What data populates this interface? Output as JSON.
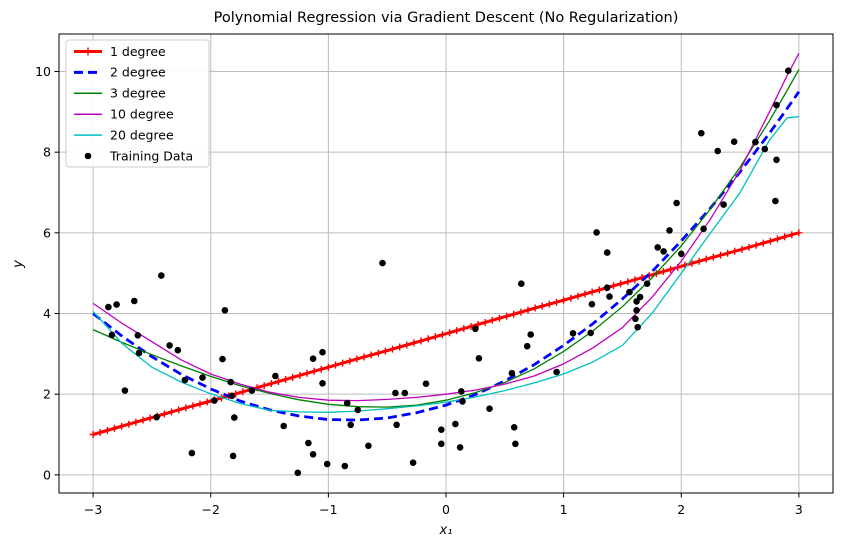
{
  "figure": {
    "title": "Polynomial Regression via Gradient Descent (No Regularization)",
    "xlabel": "x₁",
    "ylabel": "y",
    "background": "#ffffff"
  },
  "legend": {
    "position": "upper-left",
    "items": [
      {
        "label": "1 degree",
        "color": "#ff0000",
        "style": "line-plus"
      },
      {
        "label": "2 degree",
        "color": "#0000ff",
        "style": "dashed-line"
      },
      {
        "label": "3 degree",
        "color": "#008000",
        "style": "line"
      },
      {
        "label": "10 degree",
        "color": "#bf00bf",
        "style": "line"
      },
      {
        "label": "20 degree",
        "color": "#00bfbf",
        "style": "line"
      },
      {
        "label": "Training Data",
        "color": "#000000",
        "style": "dot"
      }
    ]
  },
  "chart_data": {
    "type": "line",
    "title": "Polynomial Regression via Gradient Descent (No Regularization)",
    "xlabel": "x₁",
    "ylabel": "y",
    "grid": true,
    "legend_position": "upper left",
    "xlim": [
      -3.29,
      3.29
    ],
    "ylim": [
      -0.45,
      10.93
    ],
    "xticks": [
      -3,
      -2,
      -1,
      0,
      1,
      2,
      3
    ],
    "yticks": [
      0,
      2,
      4,
      6,
      8,
      10
    ],
    "xtick_labels": [
      "−3",
      "−2",
      "−1",
      "0",
      "1",
      "2",
      "3"
    ],
    "ytick_labels": [
      "0",
      "2",
      "4",
      "6",
      "8",
      "10"
    ],
    "x": [
      -3,
      -2.75,
      -2.5,
      -2.25,
      -2,
      -1.75,
      -1.5,
      -1.25,
      -1,
      -0.75,
      -0.5,
      -0.25,
      0,
      0.25,
      0.5,
      0.75,
      1,
      1.25,
      1.5,
      1.75,
      2,
      2.25,
      2.5,
      2.75,
      2.9,
      3
    ],
    "series": [
      {
        "name": "1 degree",
        "color": "#ff0000",
        "style": "solid",
        "marker": "plus",
        "width": 3,
        "values": [
          1,
          1.21,
          1.42,
          1.63,
          1.83,
          2.04,
          2.25,
          2.46,
          2.67,
          2.88,
          3.08,
          3.29,
          3.5,
          3.71,
          3.92,
          4.13,
          4.33,
          4.54,
          4.75,
          4.96,
          5.17,
          5.38,
          5.58,
          5.79,
          5.92,
          6
        ]
      },
      {
        "name": "2 degree",
        "color": "#0000ff",
        "style": "dashed",
        "marker": "none",
        "width": 2.8,
        "values": [
          4,
          3.43,
          2.93,
          2.49,
          2.13,
          1.83,
          1.61,
          1.46,
          1.37,
          1.36,
          1.41,
          1.54,
          1.73,
          1.99,
          2.33,
          2.73,
          3.21,
          3.75,
          4.36,
          5.04,
          5.8,
          6.62,
          7.51,
          8.47,
          9.08,
          9.5
        ]
      },
      {
        "name": "3 degree",
        "color": "#008000",
        "style": "solid",
        "marker": "none",
        "width": 1.3,
        "values": [
          3.6,
          3.28,
          2.98,
          2.7,
          2.44,
          2.21,
          2.02,
          1.86,
          1.75,
          1.69,
          1.68,
          1.73,
          1.85,
          2.04,
          2.29,
          2.63,
          3.06,
          3.57,
          4.17,
          4.88,
          5.68,
          6.6,
          7.63,
          8.78,
          9.53,
          10.05
        ]
      },
      {
        "name": "10 degree",
        "color": "#bf00bf",
        "style": "solid",
        "marker": "none",
        "width": 1.3,
        "values": [
          4.25,
          3.75,
          3.3,
          2.85,
          2.5,
          2.25,
          2.05,
          1.92,
          1.85,
          1.84,
          1.87,
          1.92,
          2,
          2.1,
          2.25,
          2.45,
          2.75,
          3.15,
          3.65,
          4.4,
          5.3,
          6.35,
          7.55,
          9,
          9.9,
          10.45
        ]
      },
      {
        "name": "20 degree",
        "color": "#00bfbf",
        "style": "solid",
        "marker": "none",
        "width": 1.3,
        "values": [
          4.05,
          3.25,
          2.67,
          2.3,
          2.01,
          1.77,
          1.6,
          1.56,
          1.55,
          1.58,
          1.64,
          1.71,
          1.8,
          1.93,
          2.09,
          2.28,
          2.5,
          2.8,
          3.21,
          4,
          5,
          6,
          7,
          8.3,
          8.85,
          8.88
        ]
      }
    ],
    "scatter": {
      "name": "Training Data",
      "color": "#000000",
      "marker": "dot",
      "points": [
        [
          2.91,
          10.02
        ],
        [
          2.81,
          9.17
        ],
        [
          2.17,
          8.47
        ],
        [
          2.45,
          8.26
        ],
        [
          2.63,
          8.25
        ],
        [
          2.31,
          8.03
        ],
        [
          2.71,
          8.08
        ],
        [
          2.81,
          7.81
        ],
        [
          2.8,
          6.79
        ],
        [
          1.96,
          6.74
        ],
        [
          2.36,
          6.7
        ],
        [
          1.28,
          6.01
        ],
        [
          1.37,
          5.51
        ],
        [
          1.9,
          6.06
        ],
        [
          1.8,
          5.64
        ],
        [
          1.85,
          5.54
        ],
        [
          2.0,
          5.48
        ],
        [
          2.19,
          6.1
        ],
        [
          -0.54,
          5.25
        ],
        [
          -2.42,
          4.94
        ],
        [
          -2.87,
          4.16
        ],
        [
          -2.8,
          4.22
        ],
        [
          -2.65,
          4.31
        ],
        [
          -1.88,
          4.08
        ],
        [
          -2.84,
          3.47
        ],
        [
          -2.62,
          3.46
        ],
        [
          -2.35,
          3.21
        ],
        [
          -2.28,
          3.09
        ],
        [
          -2.61,
          3.02
        ],
        [
          -1.9,
          2.87
        ],
        [
          -1.13,
          2.88
        ],
        [
          -2.73,
          2.09
        ],
        [
          -2.22,
          2.35
        ],
        [
          -2.07,
          2.41
        ],
        [
          -1.97,
          1.84
        ],
        [
          -1.82,
          1.96
        ],
        [
          -1.83,
          2.3
        ],
        [
          -1.65,
          2.09
        ],
        [
          -1.45,
          2.45
        ],
        [
          -2.46,
          1.43
        ],
        [
          -2.16,
          0.54
        ],
        [
          -1.8,
          1.42
        ],
        [
          -1.38,
          1.21
        ],
        [
          -1.81,
          0.47
        ],
        [
          -1.26,
          0.05
        ],
        [
          0.64,
          4.74
        ],
        [
          -1.05,
          3.04
        ],
        [
          -1.05,
          2.27
        ],
        [
          0.25,
          3.62
        ],
        [
          0.72,
          3.48
        ],
        [
          0.69,
          3.19
        ],
        [
          0.28,
          2.89
        ],
        [
          0.56,
          2.52
        ],
        [
          0.94,
          2.55
        ],
        [
          -0.17,
          2.26
        ],
        [
          -0.43,
          2.03
        ],
        [
          -0.35,
          2.03
        ],
        [
          0.13,
          2.07
        ],
        [
          0.14,
          1.82
        ],
        [
          -0.84,
          1.78
        ],
        [
          -0.75,
          1.61
        ],
        [
          -0.81,
          1.24
        ],
        [
          -0.42,
          1.24
        ],
        [
          -0.04,
          1.12
        ],
        [
          0.08,
          1.26
        ],
        [
          -0.04,
          0.77
        ],
        [
          0.12,
          0.68
        ],
        [
          0.37,
          1.64
        ],
        [
          0.58,
          1.18
        ],
        [
          0.59,
          0.77
        ],
        [
          -0.66,
          0.72
        ],
        [
          -1.01,
          0.27
        ],
        [
          -0.86,
          0.22
        ],
        [
          -0.28,
          0.3
        ],
        [
          1.08,
          3.51
        ],
        [
          -1.17,
          0.79
        ],
        [
          -1.13,
          0.51
        ],
        [
          1.37,
          4.64
        ],
        [
          1.39,
          4.42
        ],
        [
          1.24,
          4.23
        ],
        [
          1.56,
          4.53
        ],
        [
          1.65,
          4.41
        ],
        [
          1.71,
          4.74
        ],
        [
          1.62,
          4.3
        ],
        [
          1.62,
          4.08
        ],
        [
          1.61,
          3.87
        ],
        [
          1.63,
          3.66
        ],
        [
          1.23,
          3.52
        ]
      ]
    }
  }
}
